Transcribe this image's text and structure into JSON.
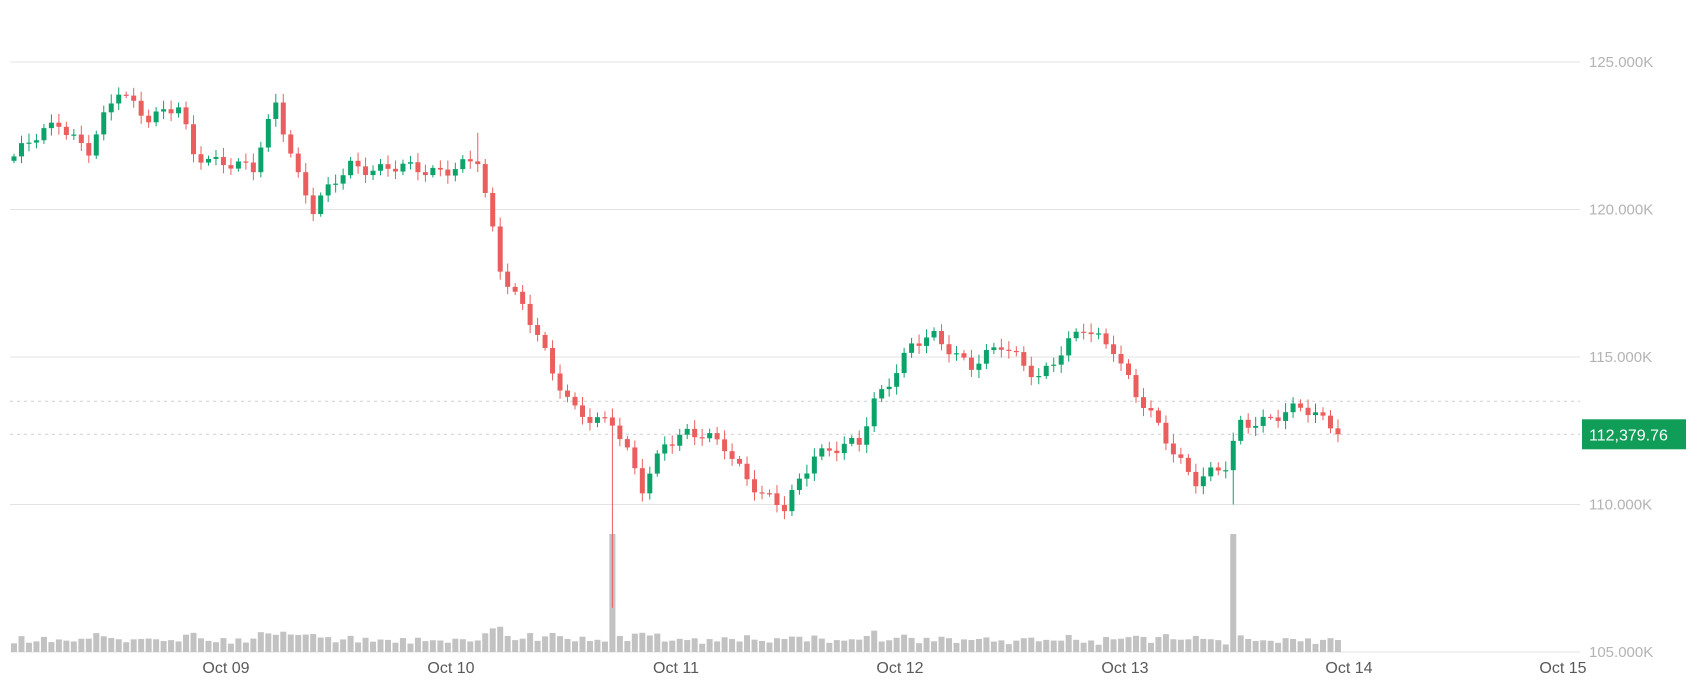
{
  "colors": {
    "up": "#0ca36a",
    "down": "#ea5e5e",
    "volume": "#c2c2c2",
    "grid": "#e3e3e3",
    "price_tag": "#0f9d58"
  },
  "chart_data": {
    "type": "candlestick",
    "title": "",
    "xlabel": "",
    "ylabel": "",
    "x_ticks": [
      "Oct 09",
      "Oct 10",
      "Oct 11",
      "Oct 12",
      "Oct 13",
      "Oct 14",
      "Oct 15"
    ],
    "y_ticks": [
      "125.000K",
      "120.000K",
      "115.000K",
      "110.000K",
      "105.000K"
    ],
    "ylim": [
      105000,
      127000
    ],
    "grid": true,
    "current_price": "112,379.76",
    "current_price_value": 112379.76,
    "reference_line": 113500,
    "waypoints": [
      [
        0,
        121800
      ],
      [
        6,
        123000
      ],
      [
        10,
        122000
      ],
      [
        14,
        124000
      ],
      [
        18,
        123200
      ],
      [
        22,
        123400
      ],
      [
        24,
        121800
      ],
      [
        28,
        121700
      ],
      [
        32,
        121300
      ],
      [
        35,
        123600
      ],
      [
        38,
        121200
      ],
      [
        40,
        120000
      ],
      [
        45,
        121500
      ],
      [
        55,
        121300
      ],
      [
        62,
        121600
      ],
      [
        65,
        118000
      ],
      [
        68,
        116800
      ],
      [
        70,
        115800
      ],
      [
        72,
        114300
      ],
      [
        75,
        113200
      ],
      [
        80,
        112800
      ],
      [
        84,
        110500
      ],
      [
        87,
        112200
      ],
      [
        90,
        112400
      ],
      [
        95,
        112000
      ],
      [
        100,
        110300
      ],
      [
        103,
        109800
      ],
      [
        107,
        111800
      ],
      [
        113,
        112000
      ],
      [
        115,
        113500
      ],
      [
        120,
        115400
      ],
      [
        123,
        115600
      ],
      [
        128,
        114800
      ],
      [
        132,
        115300
      ],
      [
        137,
        114400
      ],
      [
        143,
        115900
      ],
      [
        147,
        115400
      ],
      [
        150,
        113700
      ],
      [
        155,
        111800
      ],
      [
        158,
        110900
      ],
      [
        162,
        111200
      ],
      [
        164,
        112700
      ],
      [
        168,
        113000
      ],
      [
        172,
        113200
      ],
      [
        176,
        112800
      ],
      [
        178,
        112380
      ]
    ],
    "spikes": [
      {
        "index": 80,
        "low": 106500
      },
      {
        "index": 62,
        "high": 122600
      },
      {
        "index": 163,
        "low": 110000
      }
    ],
    "candle_count": 178
  }
}
